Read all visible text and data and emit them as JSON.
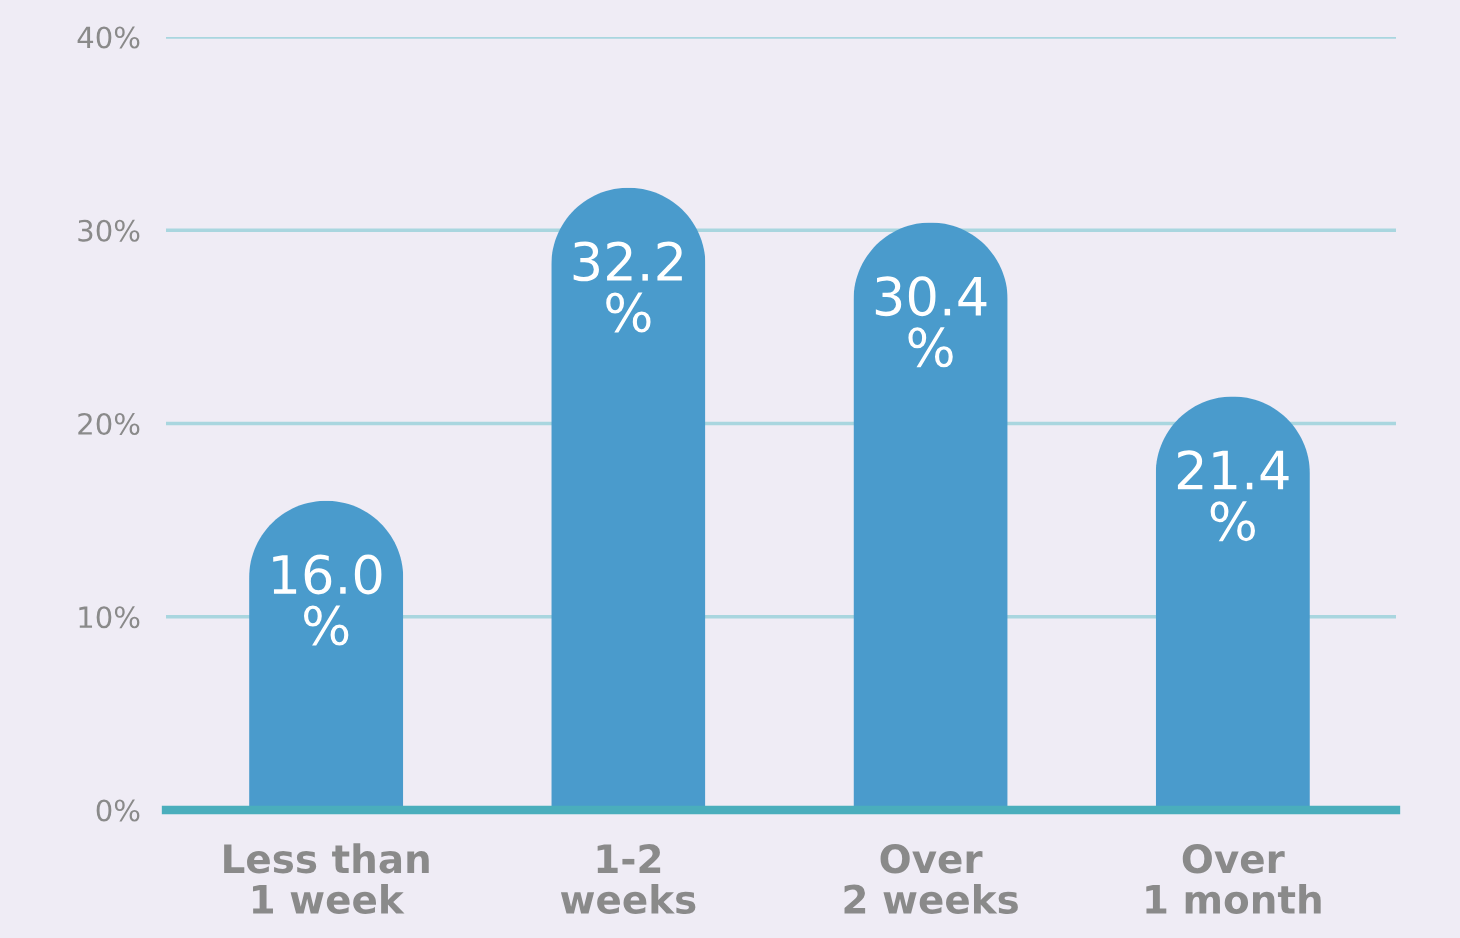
{
  "chart_data": {
    "type": "bar",
    "categories": [
      "Less than\n1 week",
      "1-2\nweeks",
      "Over\n2 weeks",
      "Over\n1 month"
    ],
    "values": [
      16.0,
      32.2,
      30.4,
      21.4
    ],
    "color": "#4a9bcc",
    "value_labels": [
      "16.0\n%",
      "32.2\n%",
      "30.4\n%",
      "21.4\n%"
    ],
    "ylim": [
      0,
      40
    ],
    "yticks": [
      {
        "value": 0,
        "label": "0%"
      },
      {
        "value": 10,
        "label": "10%"
      },
      {
        "value": 20,
        "label": "20%"
      },
      {
        "value": 30,
        "label": "30%"
      },
      {
        "value": 40,
        "label": "40%"
      }
    ],
    "grid": "y"
  }
}
